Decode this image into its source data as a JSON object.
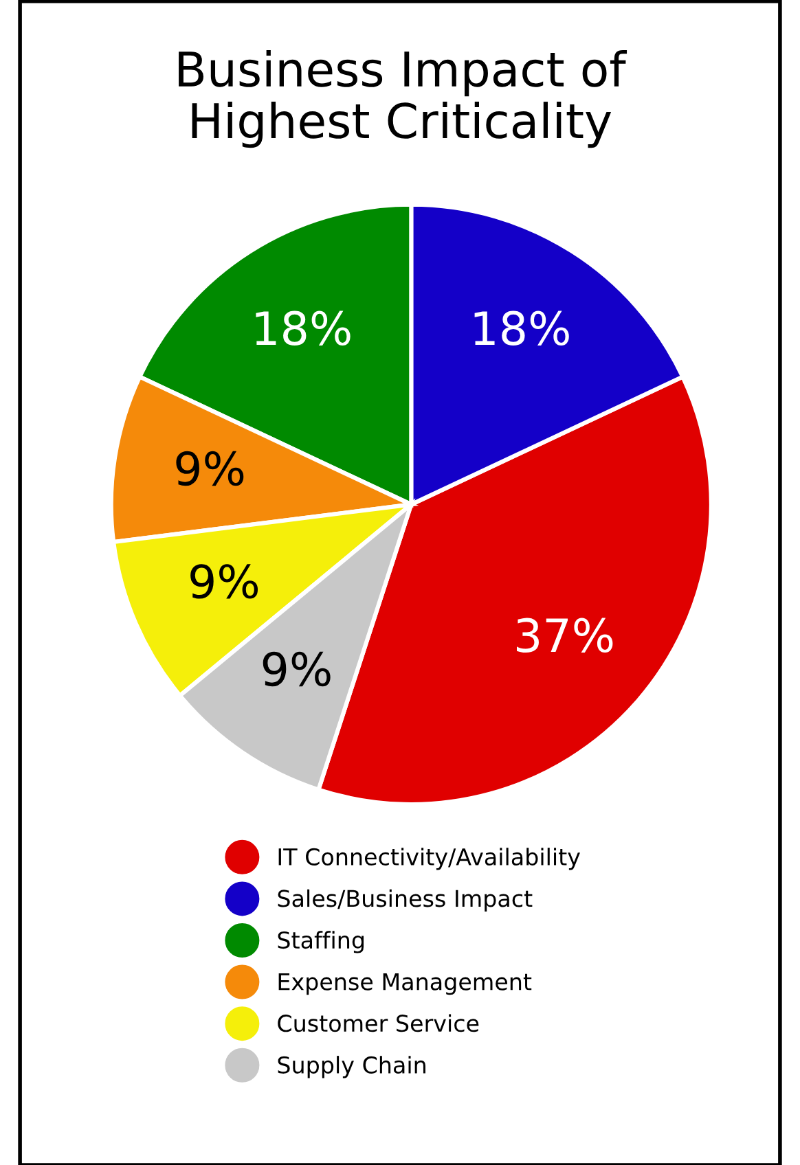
{
  "chart_data": {
    "type": "pie",
    "title": "Business Impact of\nHighest Criticality",
    "categories": [
      "IT Connectivity/Availability",
      "Sales/Business Impact",
      "Staffing",
      "Expense Management",
      "Customer Service",
      "Supply Chain"
    ],
    "values": [
      37,
      18,
      18,
      9,
      9,
      9
    ],
    "colors": [
      "#e00000",
      "#1400c8",
      "#008a00",
      "#f58a0a",
      "#f5ef0a",
      "#c8c8c8"
    ],
    "value_labels": [
      "37%",
      "18%",
      "18%",
      "9%",
      "9%",
      "9%"
    ],
    "legend": "bottom"
  }
}
